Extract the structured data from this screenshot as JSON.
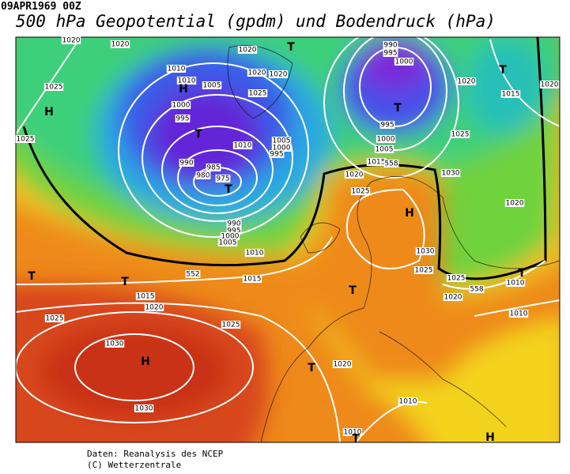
{
  "header": {
    "date": "09APR1969 00Z",
    "title": "500 hPa Geopotential (gpdm) und Bodendruck (hPa)"
  },
  "map": {
    "labels": [
      "1020",
      "1020",
      "1020",
      "990",
      "995",
      "1000",
      "1025",
      "1010",
      "1010",
      "1005",
      "1020",
      "1020",
      "1025",
      "1000",
      "995",
      "1010",
      "1005",
      "1000",
      "995",
      "990",
      "985",
      "980",
      "975",
      "990",
      "995",
      "1000",
      "1005",
      "1010",
      "995",
      "1000",
      "1005",
      "1015",
      "1020",
      "1025",
      "1030",
      "1025",
      "1020",
      "1015",
      "1020",
      "1025",
      "1020",
      "1030",
      "1025",
      "1025",
      "1020",
      "1010",
      "1010",
      "1015",
      "1015",
      "1020",
      "1025",
      "1025",
      "1030",
      "1030",
      "1020",
      "1010",
      "1010",
      "H",
      "H",
      "T",
      "T",
      "T",
      "T",
      "T",
      "H",
      "T",
      "T",
      "T",
      "H",
      "T",
      "T",
      "T",
      "H",
      "552",
      "558",
      "558"
    ]
  },
  "footer": {
    "source": "Daten: Reanalysis des NCEP",
    "copyright": "(C) Wetterzentrale"
  }
}
